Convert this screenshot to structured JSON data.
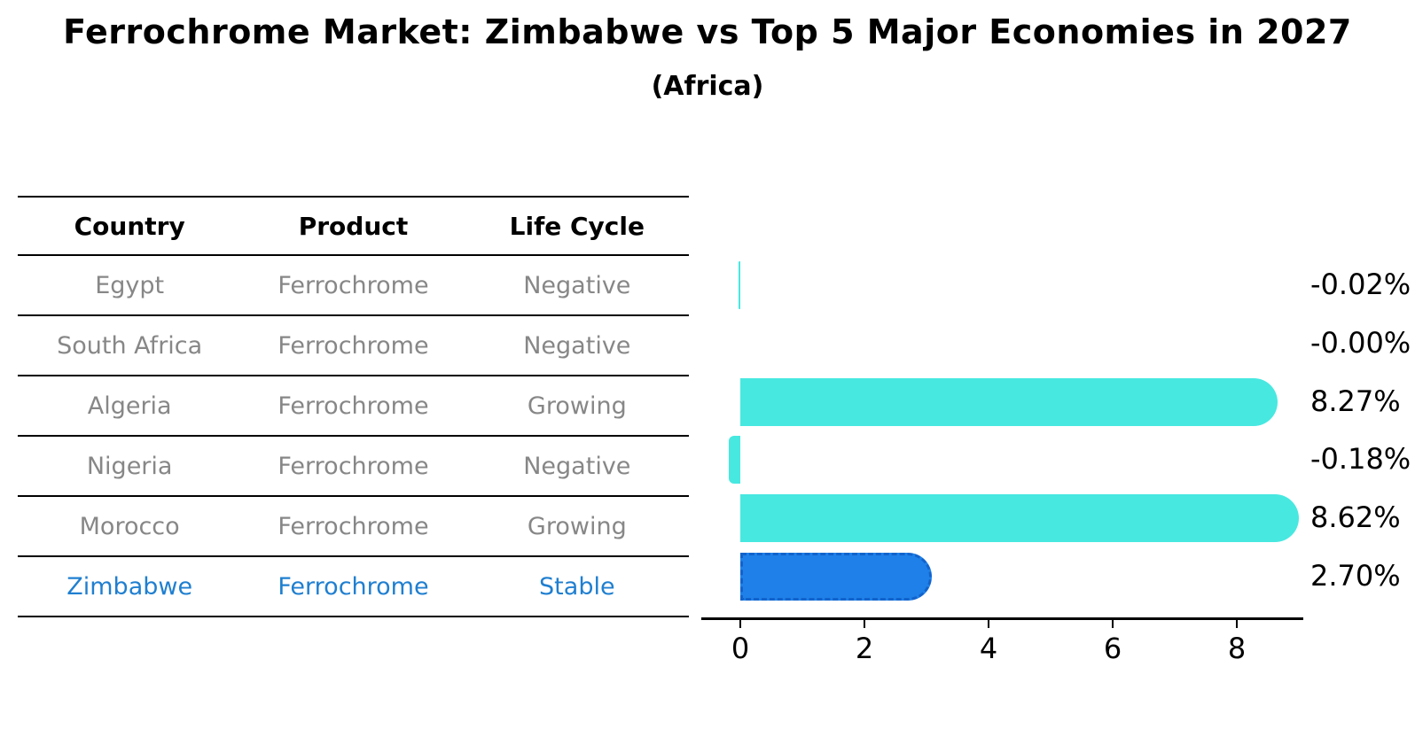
{
  "title": "Ferrochrome Market: Zimbabwe vs Top 5 Major Economies in 2027",
  "subtitle": "(Africa)",
  "table": {
    "headers": [
      "Country",
      "Product",
      "Life Cycle"
    ],
    "rows": [
      {
        "country": "Egypt",
        "product": "Ferrochrome",
        "life_cycle": "Negative",
        "highlight": false
      },
      {
        "country": "South Africa",
        "product": "Ferrochrome",
        "life_cycle": "Negative",
        "highlight": false
      },
      {
        "country": "Algeria",
        "product": "Ferrochrome",
        "life_cycle": "Growing",
        "highlight": false
      },
      {
        "country": "Nigeria",
        "product": "Ferrochrome",
        "life_cycle": "Negative",
        "highlight": false
      },
      {
        "country": "Morocco",
        "product": "Ferrochrome",
        "life_cycle": "Growing",
        "highlight": false
      },
      {
        "country": "Zimbabwe",
        "product": "Ferrochrome",
        "life_cycle": "Stable",
        "highlight": true
      }
    ]
  },
  "chart_data": {
    "type": "bar",
    "orientation": "horizontal",
    "title": "Ferrochrome Market: Zimbabwe vs Top 5 Major Economies in 2027",
    "subtitle": "(Africa)",
    "categories": [
      "Egypt",
      "South Africa",
      "Algeria",
      "Nigeria",
      "Morocco",
      "Zimbabwe"
    ],
    "values": [
      -0.02,
      -0.0,
      8.27,
      -0.18,
      8.62,
      2.7
    ],
    "value_labels": [
      "-0.02%",
      "-0.00%",
      "8.27%",
      "-0.18%",
      "8.62%",
      "2.70%"
    ],
    "x_ticks": [
      0,
      2,
      4,
      6,
      8
    ],
    "xlim": [
      -0.63,
      9.07
    ],
    "xlabel": "",
    "ylabel": "",
    "grid": false,
    "legend": null,
    "bar_color": "#47e8e0",
    "highlight_color": "#1e80e8",
    "highlight_border_color": "#1263cc",
    "highlight_index": 5,
    "highlight_style": "dashed-border"
  },
  "colors": {
    "background": "#ffffff",
    "text": "#000000",
    "table_text": "#878787",
    "highlight_text": "#1f7fd0",
    "axis": "#000000"
  }
}
